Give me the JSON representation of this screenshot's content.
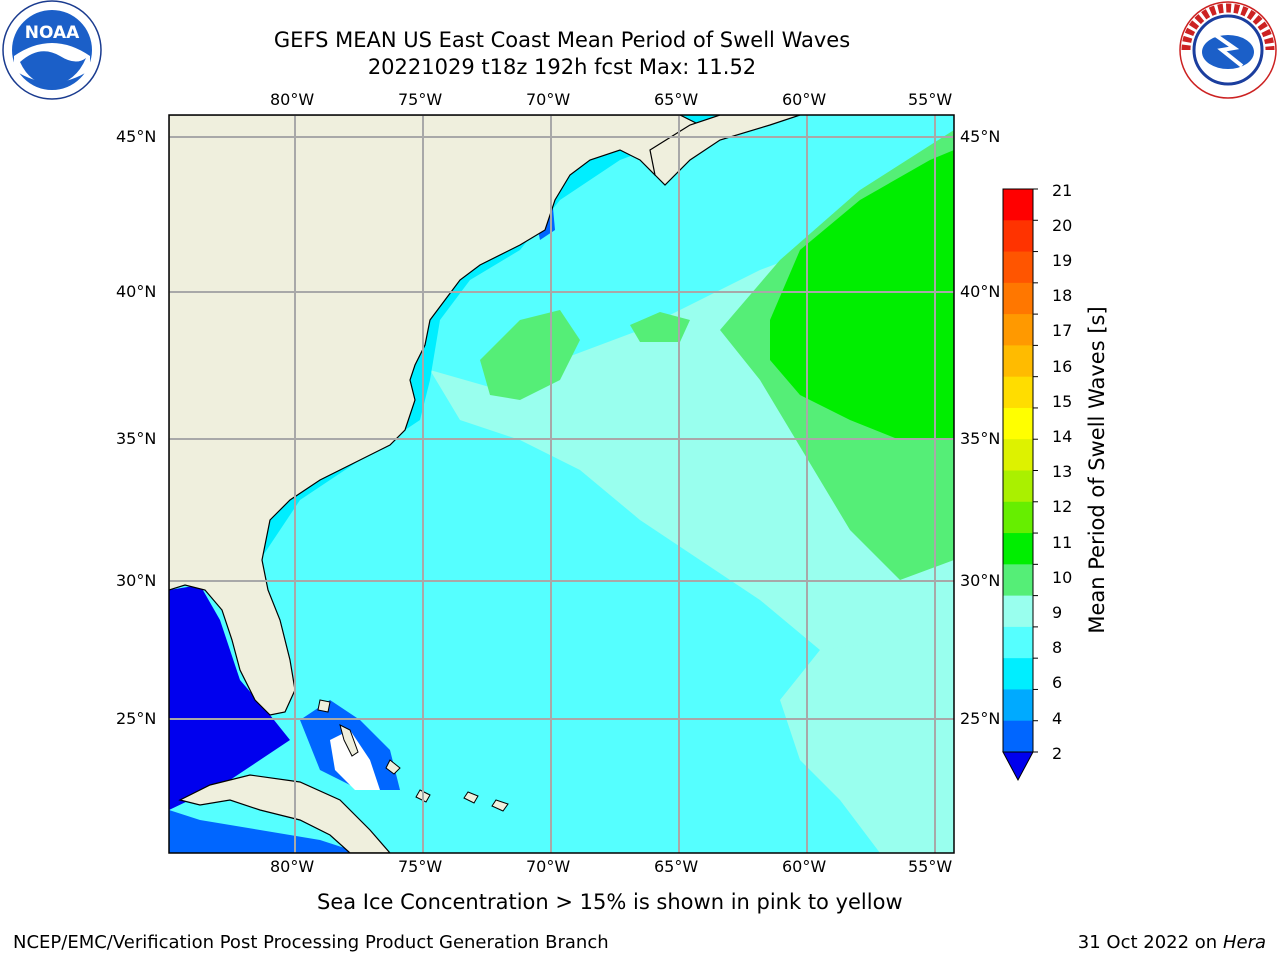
{
  "header": {
    "title_line1": "GEFS MEAN US East Coast Mean Period of Swell Waves",
    "title_line2": "20221029 t18z 192h fcst   Max: 11.52"
  },
  "logos": {
    "left": "NOAA",
    "right": "NATIONAL WEATHER SERVICE"
  },
  "map": {
    "lon_ticks_top": [
      "80°W",
      "75°W",
      "70°W",
      "65°W",
      "60°W",
      "55°W"
    ],
    "lon_ticks_bottom": [
      "80°W",
      "75°W",
      "70°W",
      "65°W",
      "60°W",
      "55°W"
    ],
    "lat_ticks_left": [
      "45°N",
      "40°N",
      "35°N",
      "30°N",
      "25°N"
    ],
    "lat_ticks_right": [
      "45°N",
      "40°N",
      "35°N",
      "30°N",
      "25°N"
    ],
    "colors": {
      "land": "#efefdd",
      "coast": "#000000",
      "grid": "#a0a0a0"
    }
  },
  "colorbar": {
    "title": "Mean Period of Swell Waves [s]",
    "labels": [
      "21",
      "20",
      "19",
      "18",
      "17",
      "16",
      "15",
      "14",
      "13",
      "12",
      "11",
      "10",
      "9",
      "8",
      "6",
      "4",
      "2"
    ],
    "colors": [
      "#ff0000",
      "#ff3300",
      "#ff5500",
      "#ff7700",
      "#ff9900",
      "#ffbb00",
      "#ffdd00",
      "#ffff00",
      "#ddf200",
      "#aaf000",
      "#66ee00",
      "#00ee00",
      "#55ee77",
      "#99ffee",
      "#55ffff",
      "#00eeff",
      "#00aaff",
      "#0066ff",
      "#0000ee"
    ]
  },
  "footer": {
    "note": "Sea Ice Concentration > 15% is shown in pink to yellow",
    "left": "NCEP/EMC/Verification Post Processing Product Generation Branch",
    "right_date": "31 Oct 2022 on ",
    "right_host": "Hera"
  }
}
